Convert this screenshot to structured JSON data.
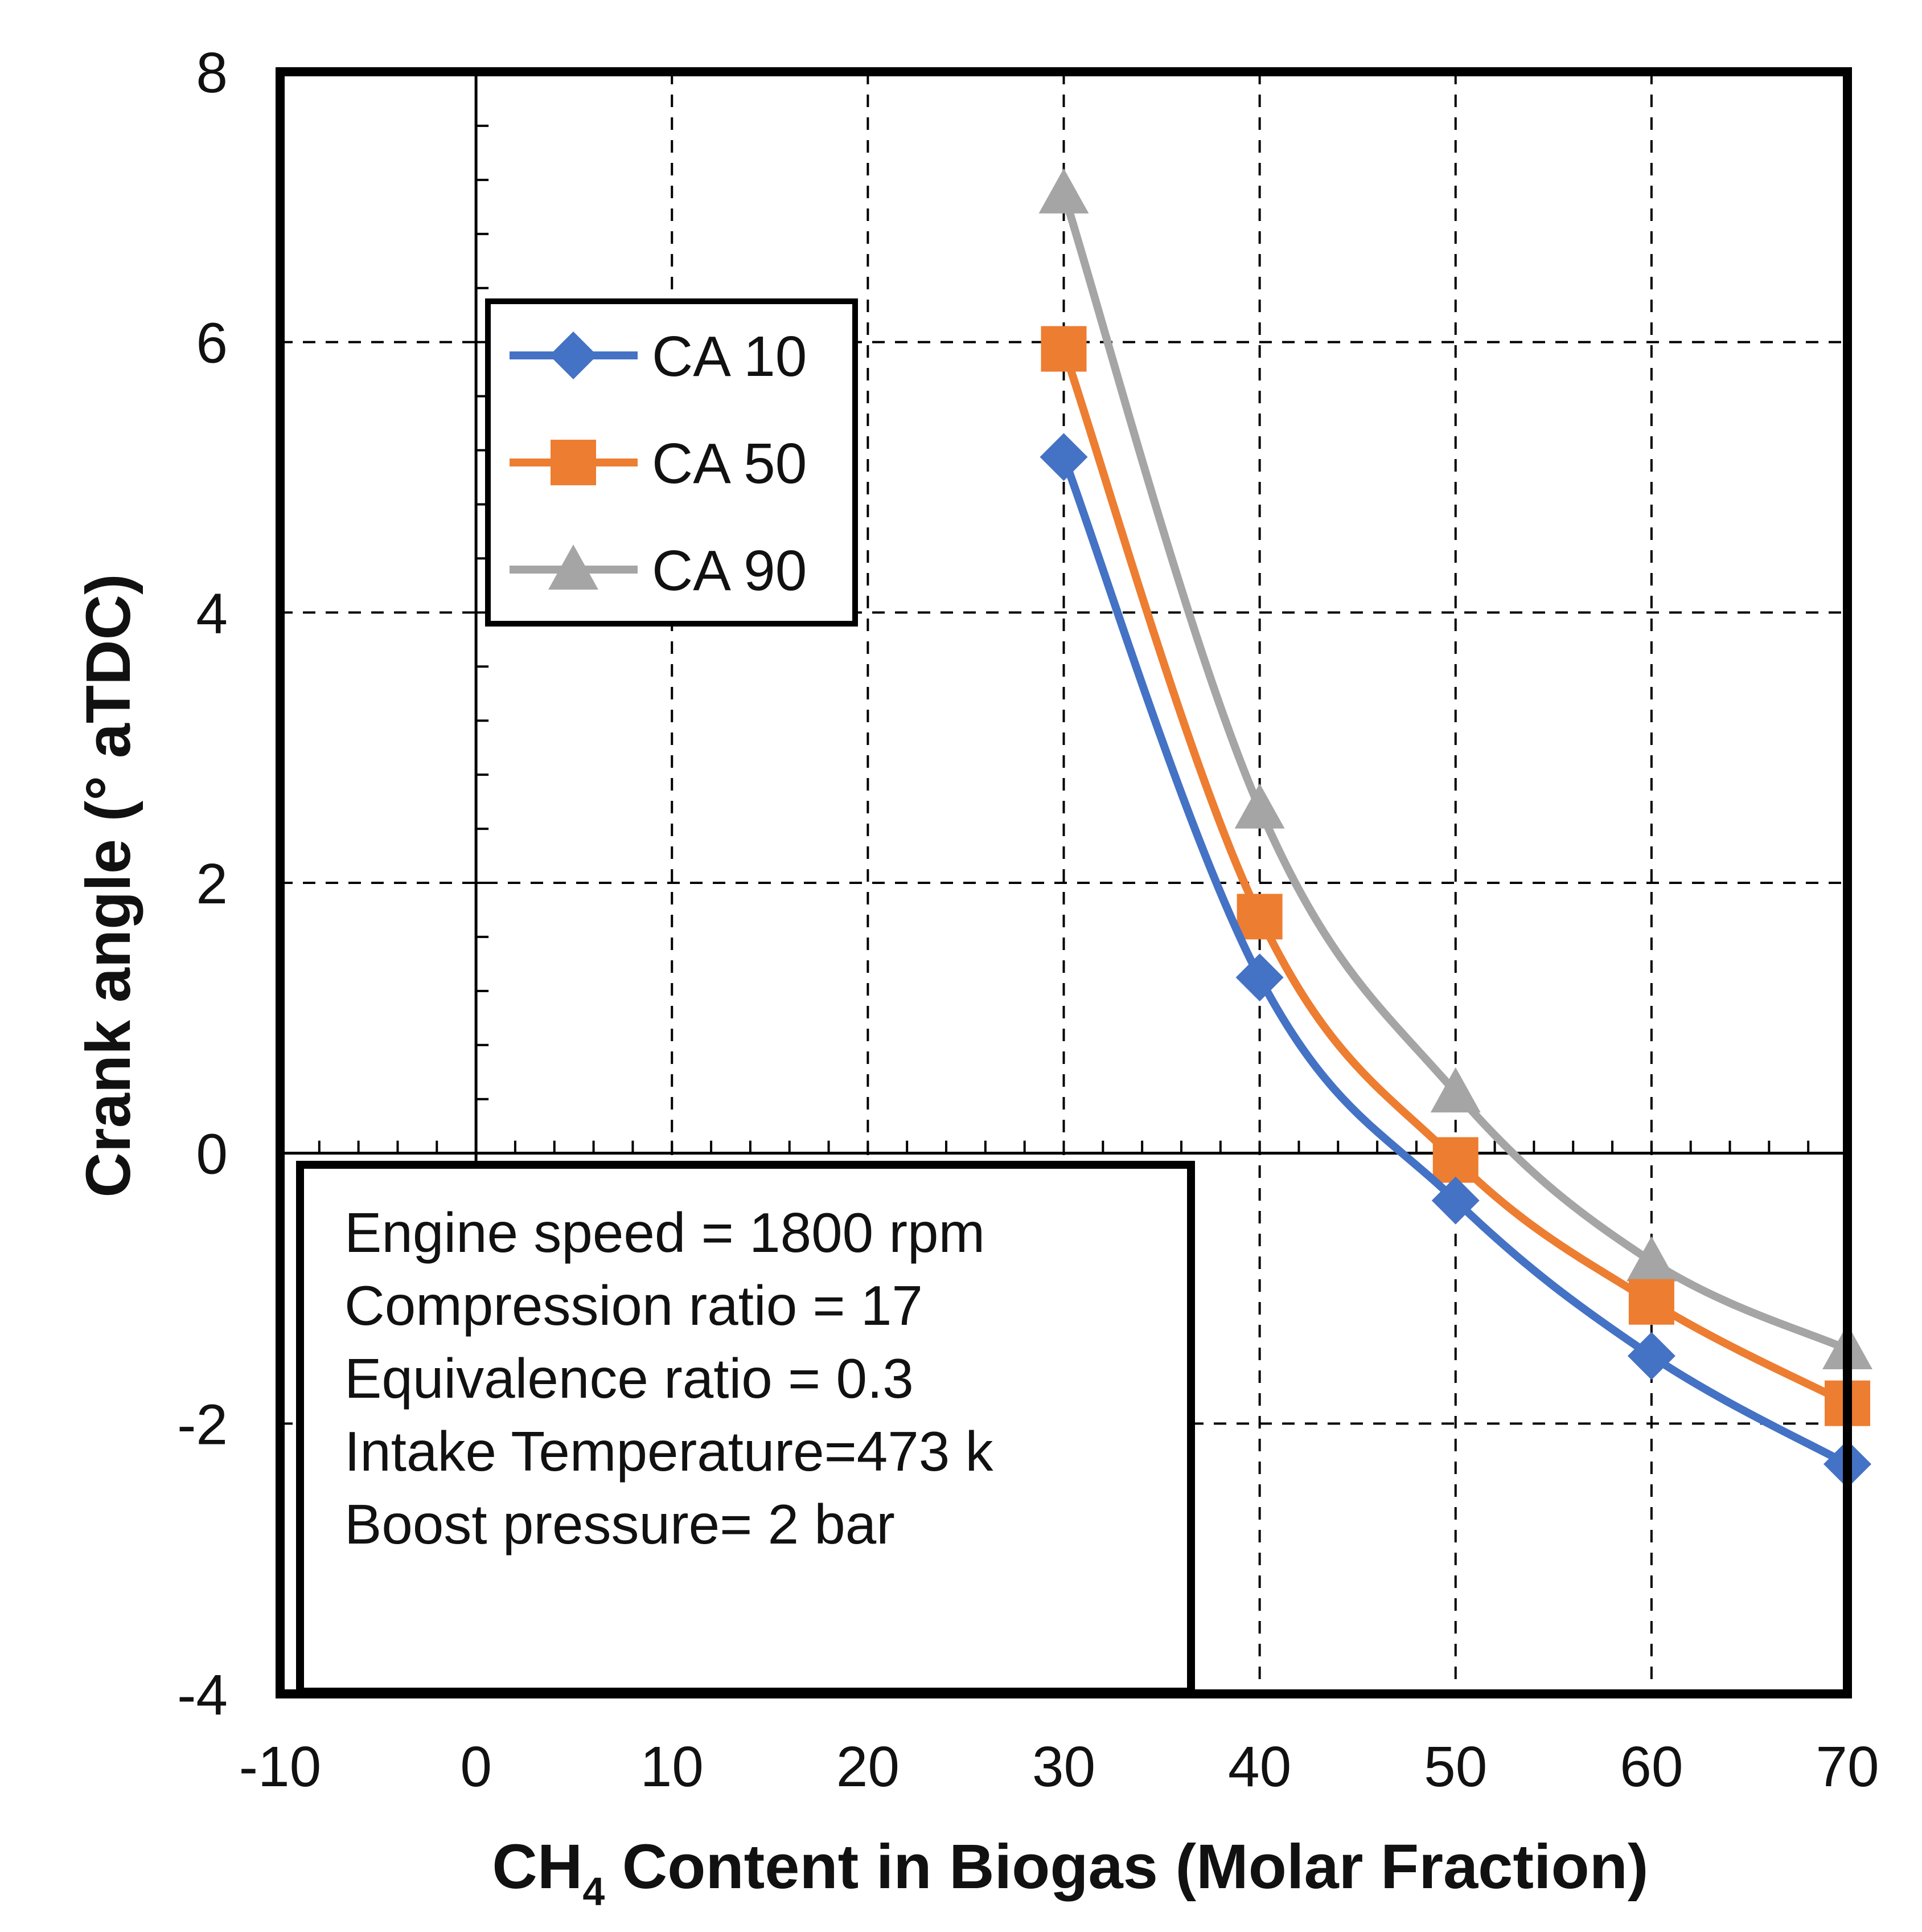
{
  "chart_data": {
    "type": "line",
    "xlabel_main": "CH",
    "xlabel_sub": "4",
    "xlabel_rest": " Content in Biogas (Molar Fraction)",
    "ylabel": "Crank angle (° aTDC)",
    "xlim": [
      -10,
      70
    ],
    "ylim": [
      -4,
      8
    ],
    "x_ticks": [
      -10,
      0,
      10,
      20,
      30,
      40,
      50,
      60,
      70
    ],
    "y_ticks": [
      -4,
      -2,
      0,
      2,
      4,
      6,
      8
    ],
    "grid": true,
    "legend_position": "top-left",
    "series": [
      {
        "name": "CA 10",
        "color": "#4472C4",
        "marker": "diamond",
        "x": [
          30,
          40,
          50,
          60,
          70
        ],
        "y": [
          5.15,
          1.3,
          -0.35,
          -1.5,
          -2.3
        ]
      },
      {
        "name": "CA 50",
        "color": "#ED7D31",
        "marker": "square",
        "x": [
          30,
          40,
          50,
          60,
          70
        ],
        "y": [
          5.95,
          1.75,
          -0.05,
          -1.1,
          -1.85
        ]
      },
      {
        "name": "CA 90",
        "color": "#A5A5A5",
        "marker": "triangle",
        "x": [
          30,
          40,
          50,
          60,
          70
        ],
        "y": [
          7.1,
          2.55,
          0.45,
          -0.8,
          -1.45
        ]
      }
    ],
    "annotation": [
      "Engine speed = 1800 rpm",
      "Compression ratio = 17",
      "Equivalence ratio = 0.3",
      "Intake Temperature=473 k",
      "Boost pressure= 2 bar"
    ]
  }
}
